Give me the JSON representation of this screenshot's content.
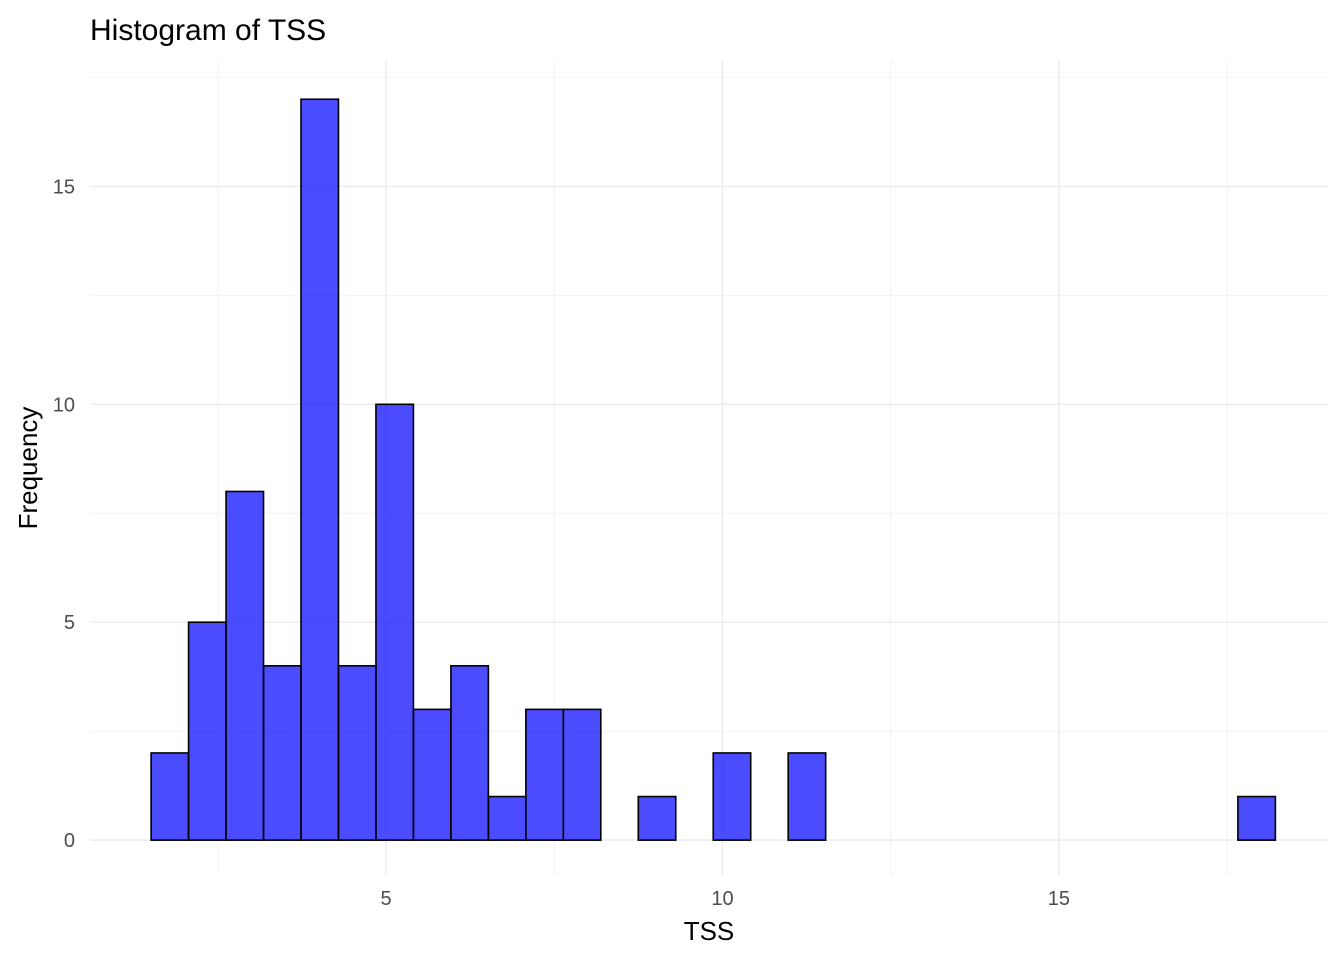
{
  "chart_data": {
    "type": "bar",
    "subtype": "histogram",
    "title": "Histogram of TSS",
    "xlabel": "TSS",
    "ylabel": "Frequency",
    "xlim": [
      0.6,
      19.0
    ],
    "ylim": [
      -0.8,
      17.9
    ],
    "x_ticks": [
      5,
      10,
      15
    ],
    "y_ticks": [
      0,
      5,
      10,
      15
    ],
    "bin_width": 0.557,
    "bins": [
      {
        "x0": 1.508,
        "x1": 2.065,
        "count": 2
      },
      {
        "x0": 2.065,
        "x1": 2.622,
        "count": 5
      },
      {
        "x0": 2.622,
        "x1": 3.179,
        "count": 8
      },
      {
        "x0": 3.179,
        "x1": 3.736,
        "count": 4
      },
      {
        "x0": 3.736,
        "x1": 4.293,
        "count": 17
      },
      {
        "x0": 4.293,
        "x1": 4.85,
        "count": 4
      },
      {
        "x0": 4.85,
        "x1": 5.407,
        "count": 10
      },
      {
        "x0": 5.407,
        "x1": 5.964,
        "count": 3
      },
      {
        "x0": 5.964,
        "x1": 6.521,
        "count": 4
      },
      {
        "x0": 6.521,
        "x1": 7.078,
        "count": 1
      },
      {
        "x0": 7.078,
        "x1": 7.635,
        "count": 3
      },
      {
        "x0": 7.635,
        "x1": 8.192,
        "count": 3
      },
      {
        "x0": 8.192,
        "x1": 8.749,
        "count": 0
      },
      {
        "x0": 8.749,
        "x1": 9.306,
        "count": 1
      },
      {
        "x0": 9.306,
        "x1": 9.863,
        "count": 0
      },
      {
        "x0": 9.863,
        "x1": 10.42,
        "count": 2
      },
      {
        "x0": 10.42,
        "x1": 10.977,
        "count": 0
      },
      {
        "x0": 10.977,
        "x1": 11.534,
        "count": 2
      },
      {
        "x0": 11.534,
        "x1": 12.091,
        "count": 0
      },
      {
        "x0": 12.091,
        "x1": 12.648,
        "count": 0
      },
      {
        "x0": 12.648,
        "x1": 13.205,
        "count": 0
      },
      {
        "x0": 13.205,
        "x1": 13.762,
        "count": 0
      },
      {
        "x0": 13.762,
        "x1": 14.319,
        "count": 0
      },
      {
        "x0": 14.319,
        "x1": 14.876,
        "count": 0
      },
      {
        "x0": 14.876,
        "x1": 15.433,
        "count": 0
      },
      {
        "x0": 15.433,
        "x1": 15.99,
        "count": 0
      },
      {
        "x0": 15.99,
        "x1": 16.547,
        "count": 0
      },
      {
        "x0": 16.547,
        "x1": 17.104,
        "count": 0
      },
      {
        "x0": 17.104,
        "x1": 17.661,
        "count": 0
      },
      {
        "x0": 17.661,
        "x1": 18.218,
        "count": 1
      }
    ],
    "fill_color": "#0000ff",
    "fill_opacity": 0.7,
    "outline_color": "#000000",
    "grid": true,
    "legend": "none"
  }
}
